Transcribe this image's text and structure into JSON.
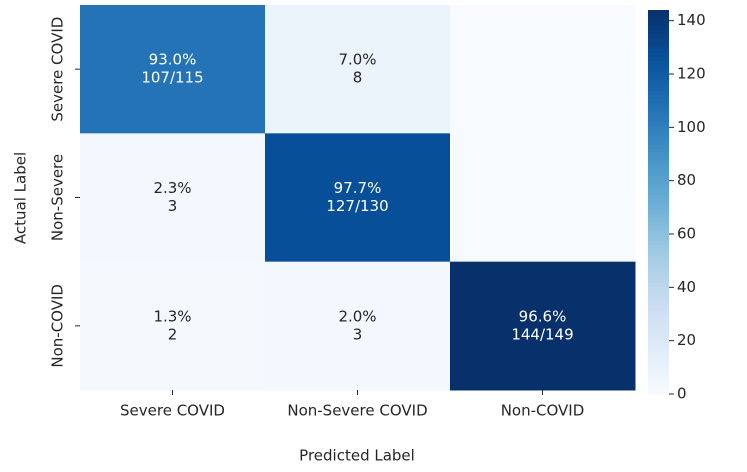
{
  "chart_data": {
    "type": "heatmap",
    "xlabel": "Predicted Label",
    "ylabel": "Actual Label",
    "x_categories": [
      "Severe COVID",
      "Non-Severe COVID",
      "Non-COVID"
    ],
    "y_categories": [
      "Severe COVID",
      "Non-Severe",
      "Non-COVID"
    ],
    "values": [
      [
        107,
        8,
        0
      ],
      [
        3,
        127,
        0
      ],
      [
        2,
        3,
        144
      ]
    ],
    "percents": [
      [
        93.0,
        7.0,
        null
      ],
      [
        2.3,
        97.7,
        null
      ],
      [
        1.3,
        2.0,
        96.6
      ]
    ],
    "percent_labels": [
      [
        "93.0%",
        "7.0%",
        null
      ],
      [
        "2.3%",
        "97.7%",
        null
      ],
      [
        "1.3%",
        "2.0%",
        "96.6%"
      ]
    ],
    "count_labels": [
      [
        "107/115",
        "8",
        null
      ],
      [
        "3",
        "127/130",
        null
      ],
      [
        "2",
        "3",
        "144/149"
      ]
    ],
    "colormap": "Blues",
    "clim": [
      0,
      144
    ],
    "cticks": [
      0,
      20,
      40,
      60,
      80,
      100,
      120,
      140
    ]
  }
}
